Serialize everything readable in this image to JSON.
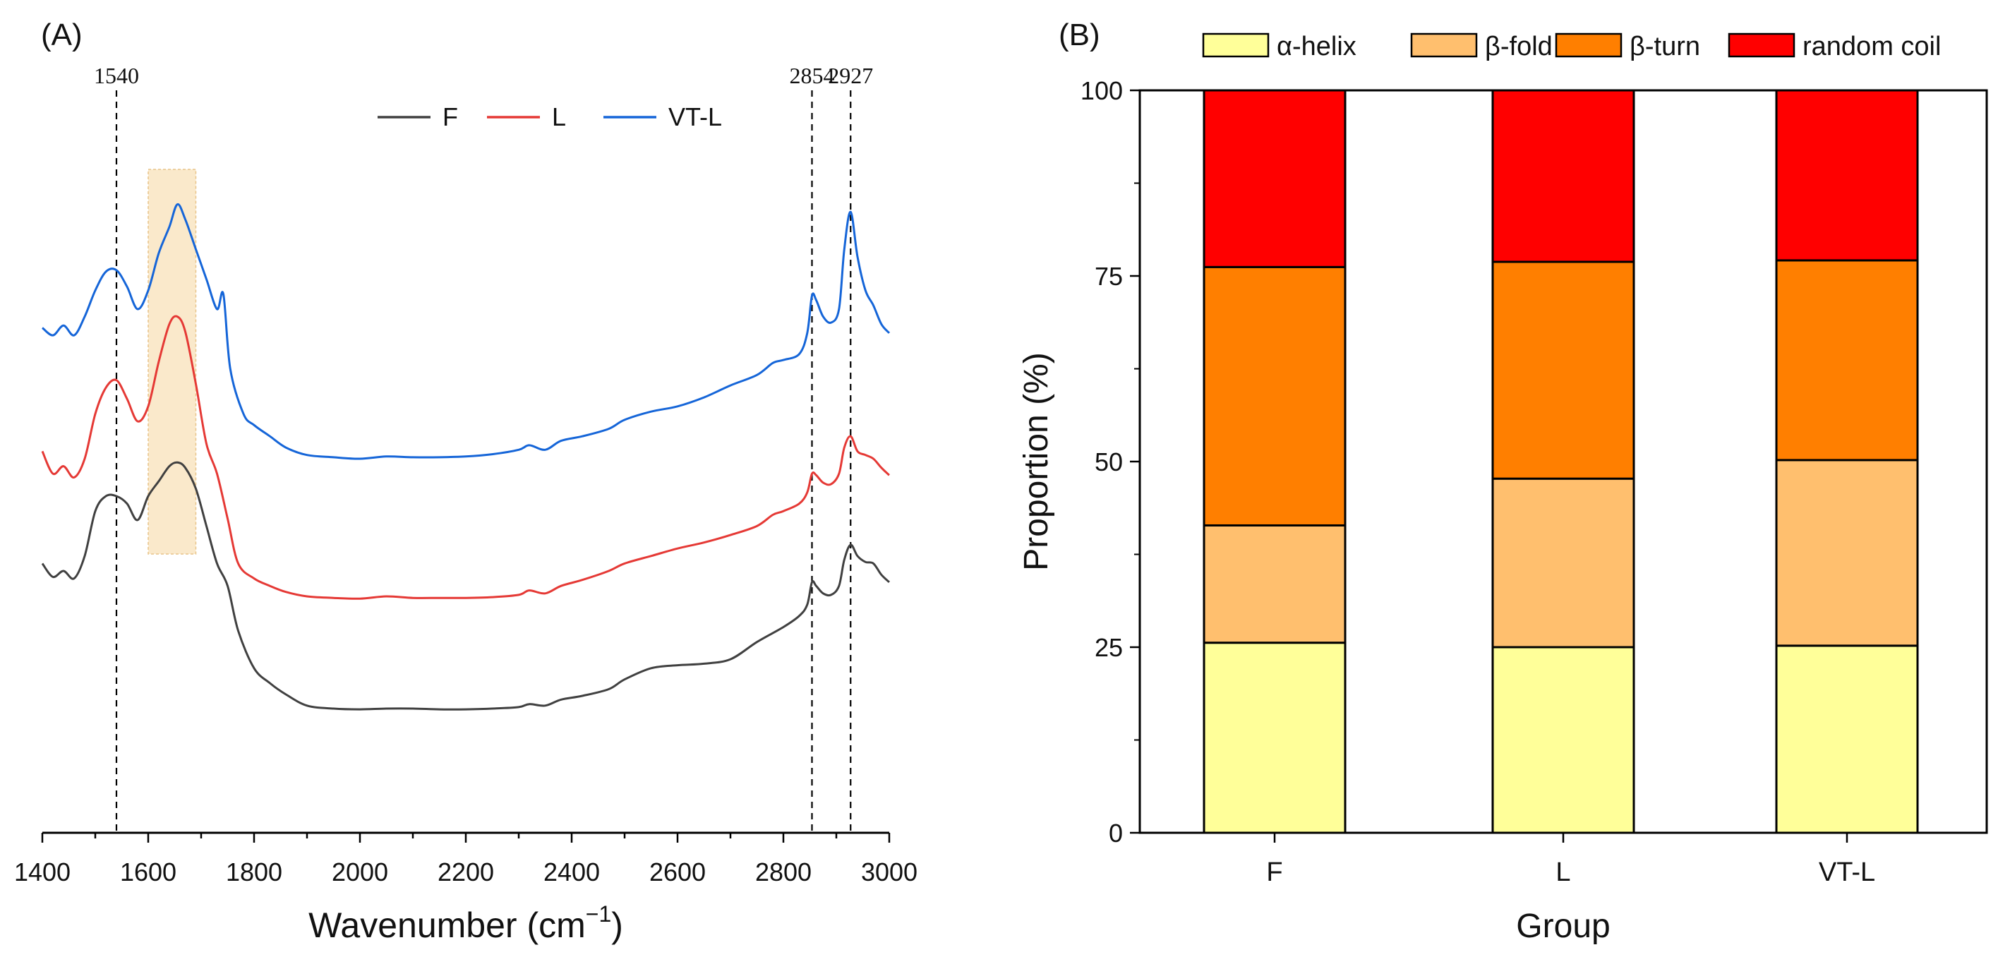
{
  "chart_data": [
    {
      "type": "line",
      "panel_label": "(A)",
      "xlabel": "Wavenumber (cm",
      "xlabel_sup": "−1",
      "xlabel_end": ")",
      "ylabel": "",
      "xlim": [
        1400,
        3000
      ],
      "ylim": [
        0,
        1
      ],
      "x_ticks": [
        1400,
        1600,
        1800,
        2000,
        2200,
        2400,
        2600,
        2800,
        3000
      ],
      "legend": [
        "F",
        "L",
        "VT-L"
      ],
      "legend_position": "top-center",
      "highlight_band": [
        1600,
        1690
      ],
      "reference_lines": [
        {
          "x": 1540,
          "label": "1540"
        },
        {
          "x": 2854,
          "label": "2854"
        },
        {
          "x": 2927,
          "label": "2927"
        }
      ],
      "series": [
        {
          "name": "F",
          "color": "#404040",
          "points": [
            [
              1400,
              0.36
            ],
            [
              1420,
              0.342
            ],
            [
              1440,
              0.35
            ],
            [
              1460,
              0.34
            ],
            [
              1480,
              0.37
            ],
            [
              1500,
              0.43
            ],
            [
              1520,
              0.45
            ],
            [
              1540,
              0.45
            ],
            [
              1560,
              0.44
            ],
            [
              1580,
              0.418
            ],
            [
              1600,
              0.45
            ],
            [
              1620,
              0.47
            ],
            [
              1640,
              0.49
            ],
            [
              1655,
              0.495
            ],
            [
              1670,
              0.488
            ],
            [
              1690,
              0.46
            ],
            [
              1710,
              0.41
            ],
            [
              1730,
              0.36
            ],
            [
              1750,
              0.33
            ],
            [
              1770,
              0.27
            ],
            [
              1800,
              0.22
            ],
            [
              1830,
              0.2
            ],
            [
              1860,
              0.185
            ],
            [
              1900,
              0.17
            ],
            [
              1950,
              0.166
            ],
            [
              2000,
              0.165
            ],
            [
              2050,
              0.166
            ],
            [
              2100,
              0.166
            ],
            [
              2150,
              0.165
            ],
            [
              2200,
              0.165
            ],
            [
              2250,
              0.166
            ],
            [
              2300,
              0.168
            ],
            [
              2320,
              0.172
            ],
            [
              2350,
              0.17
            ],
            [
              2380,
              0.178
            ],
            [
              2420,
              0.183
            ],
            [
              2470,
              0.192
            ],
            [
              2500,
              0.205
            ],
            [
              2550,
              0.22
            ],
            [
              2600,
              0.224
            ],
            [
              2650,
              0.226
            ],
            [
              2700,
              0.232
            ],
            [
              2750,
              0.255
            ],
            [
              2800,
              0.275
            ],
            [
              2830,
              0.29
            ],
            [
              2845,
              0.305
            ],
            [
              2854,
              0.335
            ],
            [
              2862,
              0.33
            ],
            [
              2875,
              0.32
            ],
            [
              2890,
              0.318
            ],
            [
              2905,
              0.33
            ],
            [
              2915,
              0.365
            ],
            [
              2927,
              0.385
            ],
            [
              2940,
              0.37
            ],
            [
              2955,
              0.362
            ],
            [
              2970,
              0.36
            ],
            [
              2985,
              0.345
            ],
            [
              3000,
              0.335
            ]
          ]
        },
        {
          "name": "L",
          "color": "#e53935",
          "points": [
            [
              1400,
              0.51
            ],
            [
              1420,
              0.48
            ],
            [
              1440,
              0.49
            ],
            [
              1460,
              0.475
            ],
            [
              1480,
              0.5
            ],
            [
              1500,
              0.56
            ],
            [
              1520,
              0.595
            ],
            [
              1540,
              0.605
            ],
            [
              1560,
              0.58
            ],
            [
              1580,
              0.55
            ],
            [
              1600,
              0.57
            ],
            [
              1620,
              0.63
            ],
            [
              1640,
              0.68
            ],
            [
              1655,
              0.69
            ],
            [
              1670,
              0.67
            ],
            [
              1690,
              0.6
            ],
            [
              1710,
              0.52
            ],
            [
              1730,
              0.48
            ],
            [
              1750,
              0.42
            ],
            [
              1770,
              0.36
            ],
            [
              1800,
              0.34
            ],
            [
              1830,
              0.33
            ],
            [
              1860,
              0.322
            ],
            [
              1900,
              0.316
            ],
            [
              1950,
              0.314
            ],
            [
              2000,
              0.313
            ],
            [
              2050,
              0.316
            ],
            [
              2100,
              0.314
            ],
            [
              2150,
              0.314
            ],
            [
              2200,
              0.314
            ],
            [
              2250,
              0.315
            ],
            [
              2300,
              0.318
            ],
            [
              2320,
              0.324
            ],
            [
              2350,
              0.32
            ],
            [
              2380,
              0.33
            ],
            [
              2420,
              0.338
            ],
            [
              2470,
              0.35
            ],
            [
              2500,
              0.36
            ],
            [
              2550,
              0.37
            ],
            [
              2600,
              0.38
            ],
            [
              2650,
              0.388
            ],
            [
              2700,
              0.398
            ],
            [
              2750,
              0.41
            ],
            [
              2780,
              0.425
            ],
            [
              2800,
              0.43
            ],
            [
              2830,
              0.44
            ],
            [
              2845,
              0.455
            ],
            [
              2854,
              0.48
            ],
            [
              2862,
              0.478
            ],
            [
              2875,
              0.468
            ],
            [
              2890,
              0.466
            ],
            [
              2905,
              0.48
            ],
            [
              2915,
              0.515
            ],
            [
              2927,
              0.53
            ],
            [
              2940,
              0.51
            ],
            [
              2955,
              0.505
            ],
            [
              2970,
              0.5
            ],
            [
              2985,
              0.488
            ],
            [
              3000,
              0.478
            ]
          ]
        },
        {
          "name": "VT-L",
          "color": "#1565d8",
          "points": [
            [
              1400,
              0.675
            ],
            [
              1420,
              0.665
            ],
            [
              1440,
              0.678
            ],
            [
              1460,
              0.665
            ],
            [
              1480,
              0.69
            ],
            [
              1500,
              0.725
            ],
            [
              1520,
              0.75
            ],
            [
              1540,
              0.752
            ],
            [
              1560,
              0.73
            ],
            [
              1580,
              0.7
            ],
            [
              1600,
              0.725
            ],
            [
              1620,
              0.775
            ],
            [
              1640,
              0.81
            ],
            [
              1655,
              0.84
            ],
            [
              1670,
              0.82
            ],
            [
              1690,
              0.78
            ],
            [
              1710,
              0.74
            ],
            [
              1730,
              0.7
            ],
            [
              1742,
              0.72
            ],
            [
              1755,
              0.62
            ],
            [
              1780,
              0.56
            ],
            [
              1800,
              0.545
            ],
            [
              1830,
              0.53
            ],
            [
              1860,
              0.515
            ],
            [
              1900,
              0.505
            ],
            [
              1950,
              0.502
            ],
            [
              2000,
              0.5
            ],
            [
              2050,
              0.503
            ],
            [
              2100,
              0.502
            ],
            [
              2150,
              0.502
            ],
            [
              2200,
              0.503
            ],
            [
              2250,
              0.506
            ],
            [
              2300,
              0.512
            ],
            [
              2320,
              0.518
            ],
            [
              2350,
              0.512
            ],
            [
              2380,
              0.524
            ],
            [
              2420,
              0.53
            ],
            [
              2470,
              0.54
            ],
            [
              2500,
              0.552
            ],
            [
              2550,
              0.563
            ],
            [
              2600,
              0.57
            ],
            [
              2650,
              0.582
            ],
            [
              2700,
              0.598
            ],
            [
              2750,
              0.612
            ],
            [
              2780,
              0.628
            ],
            [
              2800,
              0.632
            ],
            [
              2830,
              0.64
            ],
            [
              2845,
              0.668
            ],
            [
              2854,
              0.718
            ],
            [
              2862,
              0.712
            ],
            [
              2875,
              0.69
            ],
            [
              2890,
              0.682
            ],
            [
              2905,
              0.7
            ],
            [
              2915,
              0.78
            ],
            [
              2927,
              0.83
            ],
            [
              2940,
              0.77
            ],
            [
              2955,
              0.725
            ],
            [
              2970,
              0.705
            ],
            [
              2985,
              0.68
            ],
            [
              3000,
              0.668
            ]
          ]
        }
      ]
    },
    {
      "type": "bar",
      "stacked": true,
      "panel_label": "(B)",
      "xlabel": "Group",
      "ylabel": "Proportion (%)",
      "ylim": [
        0,
        100
      ],
      "y_ticks": [
        0,
        25,
        50,
        75,
        100
      ],
      "categories": [
        "F",
        "L",
        "VT-L"
      ],
      "legend_position": "top",
      "series": [
        {
          "name": "α-helix",
          "color": "#ffff99",
          "values": [
            25.6,
            25.0,
            25.2
          ]
        },
        {
          "name": "β-fold",
          "color": "#ffbf6e",
          "values": [
            15.8,
            22.7,
            25.0
          ]
        },
        {
          "name": "β-turn",
          "color": "#ff7f00",
          "values": [
            34.8,
            29.2,
            26.9
          ]
        },
        {
          "name": "random coil",
          "color": "#ff0000",
          "values": [
            23.8,
            23.1,
            22.9
          ]
        }
      ]
    }
  ]
}
